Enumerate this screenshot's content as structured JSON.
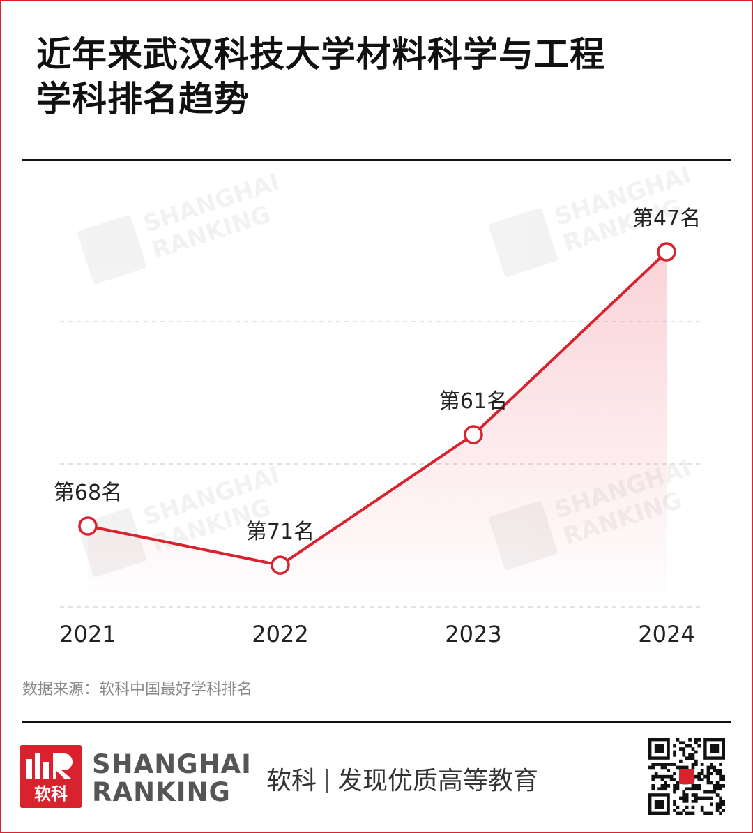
{
  "title_line1": "近年来武汉科技大学材料科学与工程",
  "title_line2": "学科排名趋势",
  "watermark": {
    "line1": "SHANGHAI",
    "line2": "RANKING",
    "cn": "软科"
  },
  "source": "数据来源：软科中国最好学科排名",
  "brand": {
    "line1": "SHANGHAI",
    "line2": "RANKING",
    "cn": "软科"
  },
  "slogan": {
    "brand": "软科",
    "text": "发现优质高等教育"
  },
  "colors": {
    "accent": "#d8232f",
    "area": "#f6c9cf",
    "grid": "#d9d9d9"
  },
  "icons": {
    "logo": "shanghairanking-logo-icon",
    "qr": "qr-code-icon"
  },
  "chart_data": {
    "type": "line",
    "categories": [
      "2021",
      "2022",
      "2023",
      "2024"
    ],
    "values": [
      68,
      71,
      61,
      47
    ],
    "labels": [
      "第68名",
      "第71名",
      "第61名",
      "第47名"
    ],
    "ylim": [
      75,
      45
    ],
    "y_inverted": true,
    "grid": "horizontal dashed",
    "legend": "none",
    "area_fill": true
  }
}
